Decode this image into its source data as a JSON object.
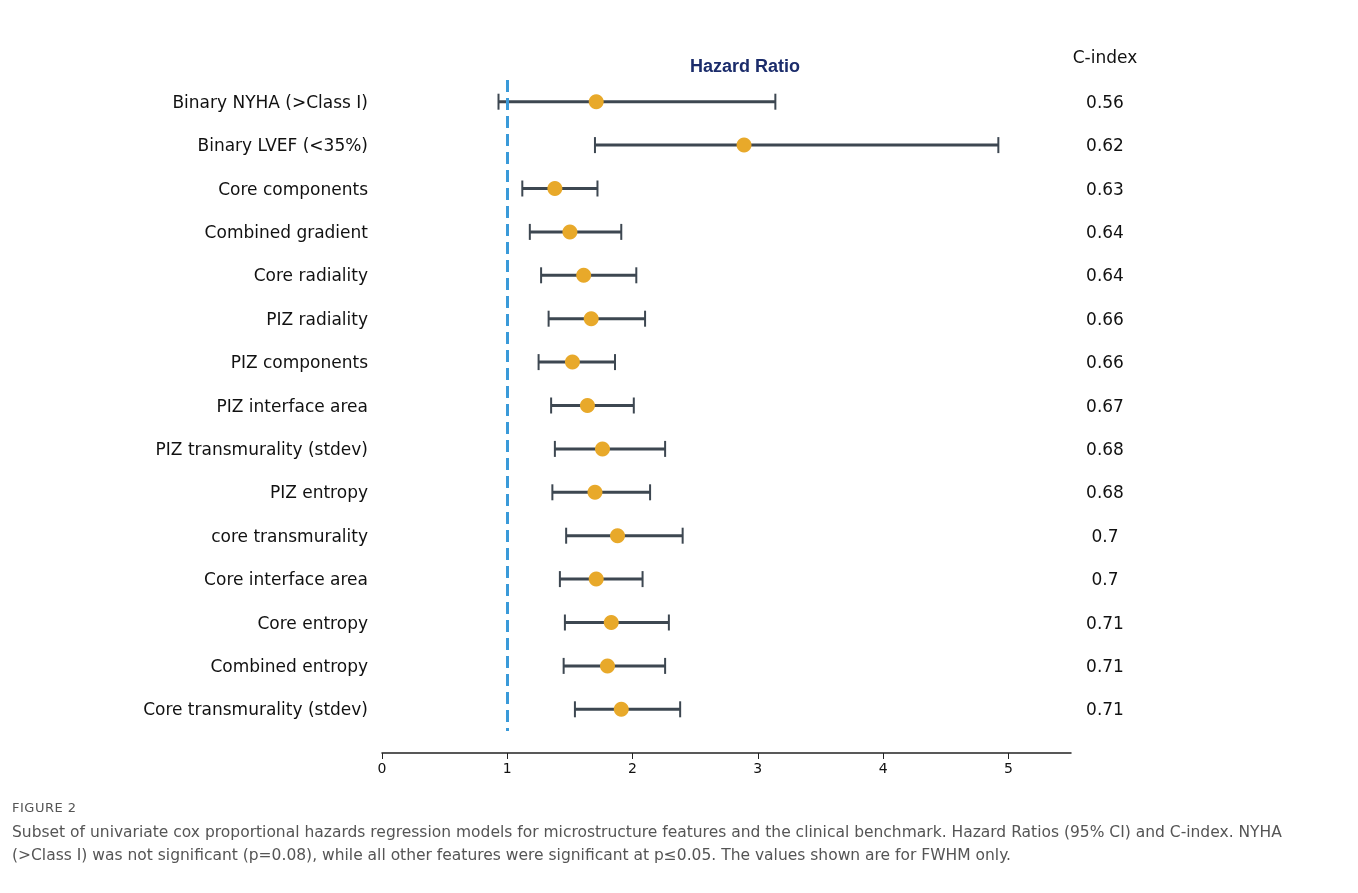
{
  "chart_data": {
    "type": "scatter",
    "orientation": "horizontal",
    "title": "Hazard Ratio",
    "categories": [
      "Binary NYHA (>Class I)",
      "Binary LVEF (<35%)",
      "Core components",
      "Combined gradient",
      "Core radiality",
      "PIZ radiality",
      "PIZ components",
      "PIZ interface area",
      "PIZ transmurality (stdev)",
      "PIZ entropy",
      "core transmurality",
      "Core interface area",
      "Core entropy",
      "Combined entropy",
      "Core transmurality (stdev)"
    ],
    "series": [
      {
        "color": "#e8a92a",
        "values": [
          1.71,
          2.89,
          1.38,
          1.5,
          1.61,
          1.67,
          1.52,
          1.64,
          1.76,
          1.7,
          1.88,
          1.71,
          1.83,
          1.8,
          1.91
        ],
        "errors": [
          [
            0.93,
            3.14
          ],
          [
            1.7,
            4.92
          ],
          [
            1.12,
            1.72
          ],
          [
            1.18,
            1.91
          ],
          [
            1.27,
            2.03
          ],
          [
            1.33,
            2.1
          ],
          [
            1.25,
            1.86
          ],
          [
            1.35,
            2.01
          ],
          [
            1.38,
            2.26
          ],
          [
            1.36,
            2.14
          ],
          [
            1.47,
            2.4
          ],
          [
            1.42,
            2.08
          ],
          [
            1.46,
            2.29
          ],
          [
            1.45,
            2.26
          ],
          [
            1.54,
            2.38
          ]
        ]
      }
    ],
    "xlim": [
      0,
      5.5
    ],
    "xticks": [
      0,
      1,
      2,
      3,
      4,
      5
    ],
    "grid": false,
    "marker": "circle",
    "ref_lines": [
      {
        "axis": "x",
        "value": 1,
        "color": "#3a9ad9",
        "line_style": "dashed"
      }
    ],
    "annotations": [
      "C-index",
      "0.56",
      "0.62",
      "0.63",
      "0.64",
      "0.64",
      "0.66",
      "0.66",
      "0.67",
      "0.68",
      "0.68",
      "0.7",
      "0.7",
      "0.71",
      "0.71",
      "0.71",
      "FIGURE 2",
      "Subset of univariate cox proportional hazards regression models for microstructure features and the clinical benchmark. Hazard Ratios (95% CI) and C-index. NYHA (>Class I) was not significant (p=0.08), while all other features were significant at p≤0.05. The values shown are for FWHM only."
    ]
  }
}
